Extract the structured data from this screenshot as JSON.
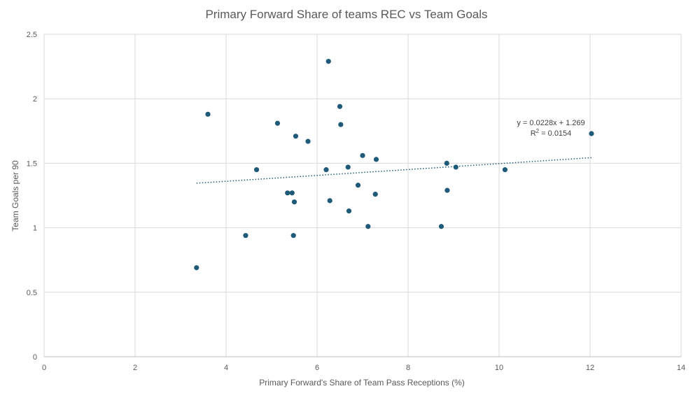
{
  "chart_data": {
    "type": "scatter",
    "title": "Primary Forward Share of teams REC vs Team Goals",
    "xlabel": "Primary Forward's Share of Team Pass Receptions (%)",
    "ylabel": "Team Goals per 90",
    "xlim": [
      0,
      14
    ],
    "ylim": [
      0,
      2.5
    ],
    "xticks": [
      0,
      2,
      4,
      6,
      8,
      10,
      12,
      14
    ],
    "yticks": [
      0,
      0.5,
      1,
      1.5,
      2,
      2.5
    ],
    "xtick_labels": [
      "0",
      "2",
      "4",
      "6",
      "8",
      "10",
      "12",
      "14"
    ],
    "ytick_labels": [
      "0",
      "0.5",
      "1",
      "1.5",
      "2",
      "2.5"
    ],
    "grid": true,
    "marker_color": "#1f5a78",
    "trendline_color": "#1f5a78",
    "points": [
      {
        "x": 3.35,
        "y": 0.69
      },
      {
        "x": 3.6,
        "y": 1.88
      },
      {
        "x": 4.43,
        "y": 0.94
      },
      {
        "x": 4.67,
        "y": 1.45
      },
      {
        "x": 5.13,
        "y": 1.81
      },
      {
        "x": 5.35,
        "y": 1.27
      },
      {
        "x": 5.45,
        "y": 1.27
      },
      {
        "x": 5.48,
        "y": 0.94
      },
      {
        "x": 5.5,
        "y": 1.2
      },
      {
        "x": 5.53,
        "y": 1.71
      },
      {
        "x": 5.8,
        "y": 1.67
      },
      {
        "x": 6.2,
        "y": 1.45
      },
      {
        "x": 6.25,
        "y": 2.29
      },
      {
        "x": 6.28,
        "y": 1.21
      },
      {
        "x": 6.5,
        "y": 1.94
      },
      {
        "x": 6.52,
        "y": 1.8
      },
      {
        "x": 6.68,
        "y": 1.47
      },
      {
        "x": 6.7,
        "y": 1.13
      },
      {
        "x": 6.9,
        "y": 1.33
      },
      {
        "x": 7.0,
        "y": 1.56
      },
      {
        "x": 7.12,
        "y": 1.01
      },
      {
        "x": 7.28,
        "y": 1.26
      },
      {
        "x": 7.3,
        "y": 1.53
      },
      {
        "x": 8.73,
        "y": 1.01
      },
      {
        "x": 8.85,
        "y": 1.5
      },
      {
        "x": 8.86,
        "y": 1.29
      },
      {
        "x": 9.05,
        "y": 1.47
      },
      {
        "x": 10.13,
        "y": 1.45
      },
      {
        "x": 12.03,
        "y": 1.73
      }
    ],
    "trendline": {
      "slope": 0.0228,
      "intercept": 1.269,
      "x_start": 3.35,
      "x_end": 12.03,
      "equation_label": "y = 0.0228x + 1.269",
      "r2_prefix": "R",
      "r2_sup": "2",
      "r2_value": " = 0.0154"
    }
  }
}
